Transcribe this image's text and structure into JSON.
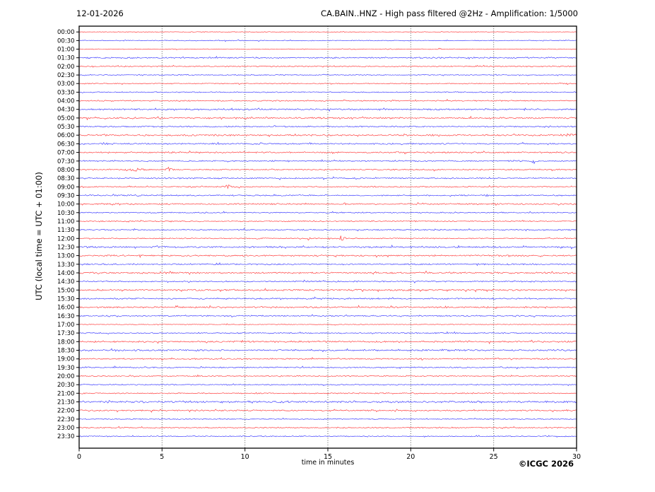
{
  "header": {
    "date": "12-01-2026",
    "title": "CA.BAIN..HNZ - High pass filtered @2Hz - Amplification: 1/5000"
  },
  "footer": {
    "xlabel": "time in minutes",
    "copyright": "©ICGC 2026"
  },
  "chart_data": {
    "type": "line",
    "subtype": "helicorder-seismogram",
    "date": "12-01-2026",
    "title": "CA.BAIN..HNZ - High pass filtered @2Hz - Amplification: 1/5000",
    "xlabel": "time in minutes",
    "ylabel": "UTC (local time = UTC + 01:00)",
    "copyright": "©ICGC 2026",
    "xlim": [
      0,
      30
    ],
    "x_ticks": [
      0,
      5,
      10,
      15,
      20,
      25,
      30
    ],
    "grid_minutes": [
      5,
      10,
      15,
      20,
      25
    ],
    "grid_on": true,
    "trace_duration_minutes": 30,
    "colors": {
      "hour_trace": "#ff3333",
      "half_hour_trace": "#3333ff",
      "frame": "#000000",
      "grid": "#444444"
    },
    "traces": [
      {
        "time": "00:00",
        "color": "#ff3333",
        "noise": 0.45
      },
      {
        "time": "00:30",
        "color": "#3333ff",
        "noise": 0.55
      },
      {
        "time": "01:00",
        "color": "#ff3333",
        "noise": 0.5
      },
      {
        "time": "01:30",
        "color": "#3333ff",
        "noise": 0.95
      },
      {
        "time": "02:00",
        "color": "#ff3333",
        "noise": 0.75
      },
      {
        "time": "02:30",
        "color": "#3333ff",
        "noise": 0.6
      },
      {
        "time": "03:00",
        "color": "#ff3333",
        "noise": 0.6
      },
      {
        "time": "03:30",
        "color": "#3333ff",
        "noise": 0.65
      },
      {
        "time": "04:00",
        "color": "#ff3333",
        "noise": 0.75
      },
      {
        "time": "04:30",
        "color": "#3333ff",
        "noise": 1.05
      },
      {
        "time": "05:00",
        "color": "#ff3333",
        "noise": 1.05
      },
      {
        "time": "05:30",
        "color": "#3333ff",
        "noise": 0.85
      },
      {
        "time": "06:00",
        "color": "#ff3333",
        "noise": 1.1
      },
      {
        "time": "06:30",
        "color": "#3333ff",
        "noise": 0.95
      },
      {
        "time": "07:00",
        "color": "#ff3333",
        "noise": 0.95
      },
      {
        "time": "07:30",
        "color": "#3333ff",
        "noise": 0.85
      },
      {
        "time": "08:00",
        "color": "#ff3333",
        "noise": 0.8
      },
      {
        "time": "08:30",
        "color": "#3333ff",
        "noise": 0.85
      },
      {
        "time": "09:00",
        "color": "#ff3333",
        "noise": 0.8
      },
      {
        "time": "09:30",
        "color": "#3333ff",
        "noise": 0.85
      },
      {
        "time": "10:00",
        "color": "#ff3333",
        "noise": 0.95
      },
      {
        "time": "10:30",
        "color": "#3333ff",
        "noise": 0.75
      },
      {
        "time": "11:00",
        "color": "#ff3333",
        "noise": 0.75
      },
      {
        "time": "11:30",
        "color": "#3333ff",
        "noise": 0.8
      },
      {
        "time": "12:00",
        "color": "#ff3333",
        "noise": 0.7
      },
      {
        "time": "12:30",
        "color": "#3333ff",
        "noise": 1.1
      },
      {
        "time": "13:00",
        "color": "#ff3333",
        "noise": 1.0
      },
      {
        "time": "13:30",
        "color": "#3333ff",
        "noise": 0.95
      },
      {
        "time": "14:00",
        "color": "#ff3333",
        "noise": 1.1
      },
      {
        "time": "14:30",
        "color": "#3333ff",
        "noise": 0.85
      },
      {
        "time": "15:00",
        "color": "#ff3333",
        "noise": 1.05
      },
      {
        "time": "15:30",
        "color": "#3333ff",
        "noise": 0.95
      },
      {
        "time": "16:00",
        "color": "#ff3333",
        "noise": 1.05
      },
      {
        "time": "16:30",
        "color": "#3333ff",
        "noise": 0.85
      },
      {
        "time": "17:00",
        "color": "#ff3333",
        "noise": 0.5
      },
      {
        "time": "17:30",
        "color": "#3333ff",
        "noise": 0.75
      },
      {
        "time": "18:00",
        "color": "#ff3333",
        "noise": 1.05
      },
      {
        "time": "18:30",
        "color": "#3333ff",
        "noise": 1.1
      },
      {
        "time": "19:00",
        "color": "#ff3333",
        "noise": 0.85
      },
      {
        "time": "19:30",
        "color": "#3333ff",
        "noise": 0.85
      },
      {
        "time": "20:00",
        "color": "#ff3333",
        "noise": 0.75
      },
      {
        "time": "20:30",
        "color": "#3333ff",
        "noise": 0.75
      },
      {
        "time": "21:00",
        "color": "#ff3333",
        "noise": 0.75
      },
      {
        "time": "21:30",
        "color": "#3333ff",
        "noise": 1.25
      },
      {
        "time": "22:00",
        "color": "#ff3333",
        "noise": 0.95
      },
      {
        "time": "22:30",
        "color": "#3333ff",
        "noise": 0.65
      },
      {
        "time": "23:00",
        "color": "#ff3333",
        "noise": 0.75
      },
      {
        "time": "23:30",
        "color": "#3333ff",
        "noise": 0.65
      }
    ],
    "events": [
      {
        "trace": "06:00",
        "minute": 29.5,
        "amplitude": 2.2,
        "width": 0.7
      },
      {
        "trace": "06:30",
        "minute": 1.7,
        "amplitude": 1.4,
        "width": 1.0
      },
      {
        "trace": "07:30",
        "minute": 26.3,
        "amplitude": 1.6,
        "width": 0.7
      },
      {
        "trace": "07:30",
        "minute": 27.4,
        "amplitude": 3.5,
        "width": 0.35
      },
      {
        "trace": "08:00",
        "minute": 3.4,
        "amplitude": 2.8,
        "width": 0.9
      },
      {
        "trace": "08:00",
        "minute": 5.4,
        "amplitude": 3.5,
        "width": 0.35
      },
      {
        "trace": "09:00",
        "minute": 8.9,
        "amplitude": 3.5,
        "width": 0.45
      },
      {
        "trace": "09:00",
        "minute": 9.7,
        "amplitude": 1.6,
        "width": 0.7
      },
      {
        "trace": "09:30",
        "minute": 3.6,
        "amplitude": 1.4,
        "width": 0.5
      },
      {
        "trace": "11:00",
        "minute": 3.0,
        "amplitude": 1.4,
        "width": 0.3
      },
      {
        "trace": "12:00",
        "minute": 13.3,
        "amplitude": 1.5,
        "width": 0.15
      },
      {
        "trace": "12:00",
        "minute": 13.85,
        "amplitude": 4.5,
        "width": 0.18
      },
      {
        "trace": "12:00",
        "minute": 15.8,
        "amplitude": 4.5,
        "width": 0.45
      },
      {
        "trace": "12:00",
        "minute": 16.9,
        "amplitude": 1.8,
        "width": 0.3
      }
    ]
  }
}
